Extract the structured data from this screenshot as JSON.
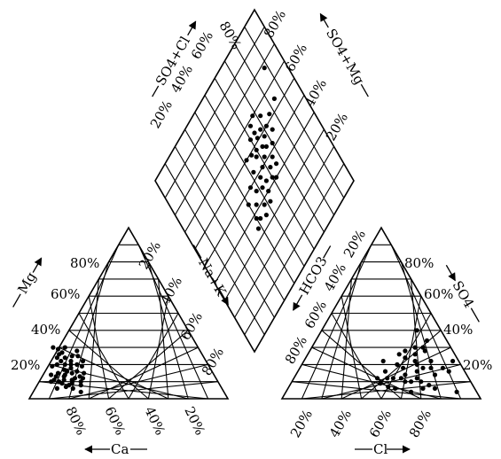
{
  "chart_data": {
    "type": "scatter",
    "title": "",
    "cation_triangle": {
      "ticks_left_side": [
        "20%",
        "40%",
        "60%",
        "80%"
      ],
      "ticks_bottom": [
        "80%",
        "60%",
        "40%",
        "20%"
      ],
      "ticks_right_side": [
        "20%",
        "40%",
        "60%",
        "80%"
      ],
      "label_left": "Mg",
      "label_bottom": "Ca",
      "label_right": "Na+K"
    },
    "anion_triangle": {
      "ticks_left_side": [
        "20%",
        "40%",
        "60%",
        "80%"
      ],
      "ticks_bottom": [
        "20%",
        "40%",
        "60%",
        "80%"
      ],
      "ticks_right_side": [
        "80%",
        "60%",
        "40%",
        "20%"
      ],
      "label_left": "HCO3",
      "label_bottom": "Cl",
      "label_right": "SO4"
    },
    "diamond": {
      "ticks_upper_left": [
        "20%",
        "40%",
        "60%",
        "80%"
      ],
      "ticks_upper_right": [
        "80%",
        "60%",
        "40%",
        "20%"
      ],
      "label_upper_left": "SO4+Cl",
      "label_upper_right": "SO4+Mg"
    },
    "cation_points": [
      {
        "ca": 70,
        "mg": 18
      },
      {
        "ca": 72,
        "mg": 20
      },
      {
        "ca": 68,
        "mg": 22
      },
      {
        "ca": 74,
        "mg": 17
      },
      {
        "ca": 66,
        "mg": 25
      },
      {
        "ca": 70,
        "mg": 24
      },
      {
        "ca": 76,
        "mg": 20
      },
      {
        "ca": 73,
        "mg": 22
      },
      {
        "ca": 69,
        "mg": 20
      },
      {
        "ca": 71,
        "mg": 15
      },
      {
        "ca": 75,
        "mg": 14
      },
      {
        "ca": 78,
        "mg": 15
      },
      {
        "ca": 80,
        "mg": 13
      },
      {
        "ca": 82,
        "mg": 11
      },
      {
        "ca": 79,
        "mg": 9
      },
      {
        "ca": 77,
        "mg": 11
      },
      {
        "ca": 73,
        "mg": 11
      },
      {
        "ca": 71,
        "mg": 12
      },
      {
        "ca": 74,
        "mg": 9
      },
      {
        "ca": 78,
        "mg": 7
      },
      {
        "ca": 80,
        "mg": 10
      },
      {
        "ca": 76,
        "mg": 8
      },
      {
        "ca": 68,
        "mg": 16
      },
      {
        "ca": 66,
        "mg": 20
      },
      {
        "ca": 64,
        "mg": 19
      },
      {
        "ca": 62,
        "mg": 22
      },
      {
        "ca": 63,
        "mg": 25
      },
      {
        "ca": 70,
        "mg": 27
      },
      {
        "ca": 72,
        "mg": 26
      },
      {
        "ca": 67,
        "mg": 12
      },
      {
        "ca": 69,
        "mg": 10
      },
      {
        "ca": 83,
        "mg": 6
      },
      {
        "ca": 75,
        "mg": 6
      },
      {
        "ca": 72,
        "mg": 4
      },
      {
        "ca": 82,
        "mg": 14
      },
      {
        "ca": 84,
        "mg": 10
      },
      {
        "ca": 79,
        "mg": 19
      },
      {
        "ca": 74,
        "mg": 24
      },
      {
        "ca": 71,
        "mg": 29
      },
      {
        "ca": 76,
        "mg": 13
      },
      {
        "ca": 68,
        "mg": 13
      },
      {
        "ca": 65,
        "mg": 15
      },
      {
        "ca": 70,
        "mg": 8
      },
      {
        "ca": 73,
        "mg": 16
      },
      {
        "ca": 62,
        "mg": 28
      },
      {
        "ca": 67,
        "mg": 30
      },
      {
        "ca": 73,
        "mg": 30
      }
    ],
    "anion_points": [
      {
        "cl": 46,
        "so4": 26
      },
      {
        "cl": 50,
        "so4": 24
      },
      {
        "cl": 54,
        "so4": 26
      },
      {
        "cl": 48,
        "so4": 20
      },
      {
        "cl": 56,
        "so4": 22
      },
      {
        "cl": 52,
        "so4": 18
      },
      {
        "cl": 60,
        "so4": 16
      },
      {
        "cl": 58,
        "so4": 20
      },
      {
        "cl": 44,
        "so4": 16
      },
      {
        "cl": 40,
        "so4": 22
      },
      {
        "cl": 42,
        "so4": 12
      },
      {
        "cl": 47,
        "so4": 12
      },
      {
        "cl": 50,
        "so4": 12
      },
      {
        "cl": 55,
        "so4": 14
      },
      {
        "cl": 62,
        "so4": 12
      },
      {
        "cl": 60,
        "so4": 10
      },
      {
        "cl": 65,
        "so4": 10
      },
      {
        "cl": 70,
        "so4": 8
      },
      {
        "cl": 68,
        "so4": 6
      },
      {
        "cl": 74,
        "so4": 6
      },
      {
        "cl": 66,
        "so4": 18
      },
      {
        "cl": 56,
        "so4": 30
      },
      {
        "cl": 58,
        "so4": 28
      },
      {
        "cl": 52,
        "so4": 30
      },
      {
        "cl": 48,
        "so4": 28
      },
      {
        "cl": 48,
        "so4": 40
      },
      {
        "cl": 56,
        "so4": 34
      },
      {
        "cl": 64,
        "so4": 22
      },
      {
        "cl": 72,
        "so4": 18
      },
      {
        "cl": 70,
        "so4": 14
      },
      {
        "cl": 63,
        "so4": 4
      },
      {
        "cl": 57,
        "so4": 10
      },
      {
        "cl": 45,
        "so4": 9
      },
      {
        "cl": 50,
        "so4": 7
      },
      {
        "cl": 54,
        "so4": 6
      },
      {
        "cl": 75,
        "so4": 22
      },
      {
        "cl": 76,
        "so4": 16
      },
      {
        "cl": 86,
        "so4": 4
      },
      {
        "cl": 54,
        "so4": 12
      },
      {
        "cl": 62,
        "so4": 18
      }
    ],
    "diamond_points": [
      {
        "so4cl": 78,
        "so4mg": 88
      },
      {
        "so4cl": 64,
        "so4mg": 84
      },
      {
        "so4cl": 62,
        "so4mg": 77
      },
      {
        "so4cl": 60,
        "so4mg": 72
      },
      {
        "so4cl": 66,
        "so4mg": 72
      },
      {
        "so4cl": 58,
        "so4mg": 68
      },
      {
        "so4cl": 61,
        "so4mg": 64
      },
      {
        "so4cl": 54,
        "so4mg": 66
      },
      {
        "so4cl": 52,
        "so4mg": 62
      },
      {
        "so4cl": 56,
        "so4mg": 58
      },
      {
        "so4cl": 59,
        "so4mg": 56
      },
      {
        "so4cl": 50,
        "so4mg": 58
      },
      {
        "so4cl": 46,
        "so4mg": 62
      },
      {
        "so4cl": 48,
        "so4mg": 54
      },
      {
        "so4cl": 53,
        "so4mg": 52
      },
      {
        "so4cl": 44,
        "so4mg": 56
      },
      {
        "so4cl": 42,
        "so4mg": 60
      },
      {
        "so4cl": 40,
        "so4mg": 54
      },
      {
        "so4cl": 46,
        "so4mg": 48
      },
      {
        "so4cl": 38,
        "so4mg": 48
      },
      {
        "so4cl": 42,
        "so4mg": 44
      },
      {
        "so4cl": 36,
        "so4mg": 42
      },
      {
        "so4cl": 34,
        "so4mg": 46
      },
      {
        "so4cl": 38,
        "so4mg": 40
      },
      {
        "so4cl": 56,
        "so4mg": 64
      },
      {
        "so4cl": 64,
        "so4mg": 60
      },
      {
        "so4cl": 58,
        "so4mg": 60
      },
      {
        "so4cl": 48,
        "so4mg": 66
      },
      {
        "so4cl": 44,
        "so4mg": 66
      },
      {
        "so4cl": 40,
        "so4mg": 62
      },
      {
        "so4cl": 62,
        "so4mg": 68
      },
      {
        "so4cl": 68,
        "so4mg": 64
      },
      {
        "so4cl": 70,
        "so4mg": 68
      },
      {
        "so4cl": 50,
        "so4mg": 46
      },
      {
        "so4cl": 34,
        "so4mg": 38
      },
      {
        "so4cl": 46,
        "so4mg": 40
      },
      {
        "so4cl": 64,
        "so4mg": 64
      },
      {
        "so4cl": 52,
        "so4mg": 70
      },
      {
        "so4cl": 56,
        "so4mg": 74
      },
      {
        "so4cl": 44,
        "so4mg": 52
      },
      {
        "so4cl": 36,
        "so4mg": 52
      },
      {
        "so4cl": 60,
        "so4mg": 52
      }
    ]
  }
}
